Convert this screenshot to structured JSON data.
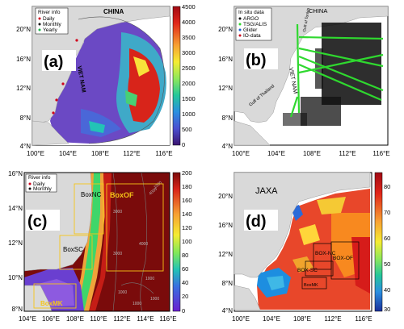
{
  "panels": [
    {
      "letter": "(a)",
      "country_labels": [
        "CHINA",
        "VIET NAM"
      ],
      "legend": {
        "title": "River info",
        "items": [
          "Daily",
          "Monthly",
          "Yearly"
        ]
      },
      "lat_ticks": [
        "20°N",
        "16°N",
        "12°N",
        "8°N",
        "4°N"
      ],
      "lon_ticks": [
        "100°E",
        "104°E",
        "108°E",
        "112°E",
        "116°E"
      ],
      "colorbar": {
        "ticks": [
          "4500",
          "4000",
          "3500",
          "3000",
          "2500",
          "2000",
          "1500",
          "1000",
          "500",
          "0"
        ],
        "colors": [
          "#da1f14",
          "#f0582b",
          "#f9a13a",
          "#f6e92c",
          "#b5ee3f",
          "#51d77a",
          "#1fb9c8",
          "#3b6ee2",
          "#5a34c8",
          "#4a1a8a"
        ]
      }
    },
    {
      "letter": "(b)",
      "country_labels": [
        "CHINA",
        "VIET NAM",
        "Gulf of Tonkin",
        "Gulf of Thailand"
      ],
      "legend": {
        "title": "In situ data",
        "items": [
          "ARGO",
          "TSG/ALIS",
          "Glider",
          "IO-data"
        ]
      },
      "lat_ticks": [
        "20°N",
        "16°N",
        "12°N",
        "8°N",
        "4°N"
      ],
      "lon_ticks": [
        "100°E",
        "104°E",
        "108°E",
        "112°E",
        "116°E"
      ]
    },
    {
      "letter": "(c)",
      "legend": {
        "title": "River info",
        "items": [
          "Daily",
          "Monthly"
        ]
      },
      "boxes": [
        "BoxNC",
        "BoxSC",
        "BoxOF",
        "BoxMK"
      ],
      "contours": [
        "1000",
        "1000",
        "1000",
        "1000",
        "1000",
        "4000",
        "3000",
        "4000",
        "3000"
      ],
      "lat_ticks": [
        "16°N",
        "14°N",
        "12°N",
        "10°N",
        "8°N"
      ],
      "lon_ticks": [
        "104°E",
        "106°E",
        "108°E",
        "110°E",
        "112°E",
        "114°E",
        "116°E"
      ],
      "colorbar": {
        "ticks": [
          "200",
          "180",
          "160",
          "140",
          "120",
          "100",
          "80",
          "60",
          "40",
          "20",
          "0"
        ]
      }
    },
    {
      "letter": "(d)",
      "source": "JAXA",
      "boxes": [
        "BOX-NC",
        "BOX-SC",
        "BOX-OF",
        "BoxMK"
      ],
      "lat_ticks": [
        "20°N",
        "16°N",
        "12°N",
        "8°N",
        "4°N"
      ],
      "lon_ticks": [
        "100°E",
        "104°E",
        "108°E",
        "112°E",
        "116°E"
      ],
      "colorbar": {
        "ticks": [
          "80",
          "70",
          "60",
          "50",
          "40",
          "30"
        ]
      }
    }
  ]
}
